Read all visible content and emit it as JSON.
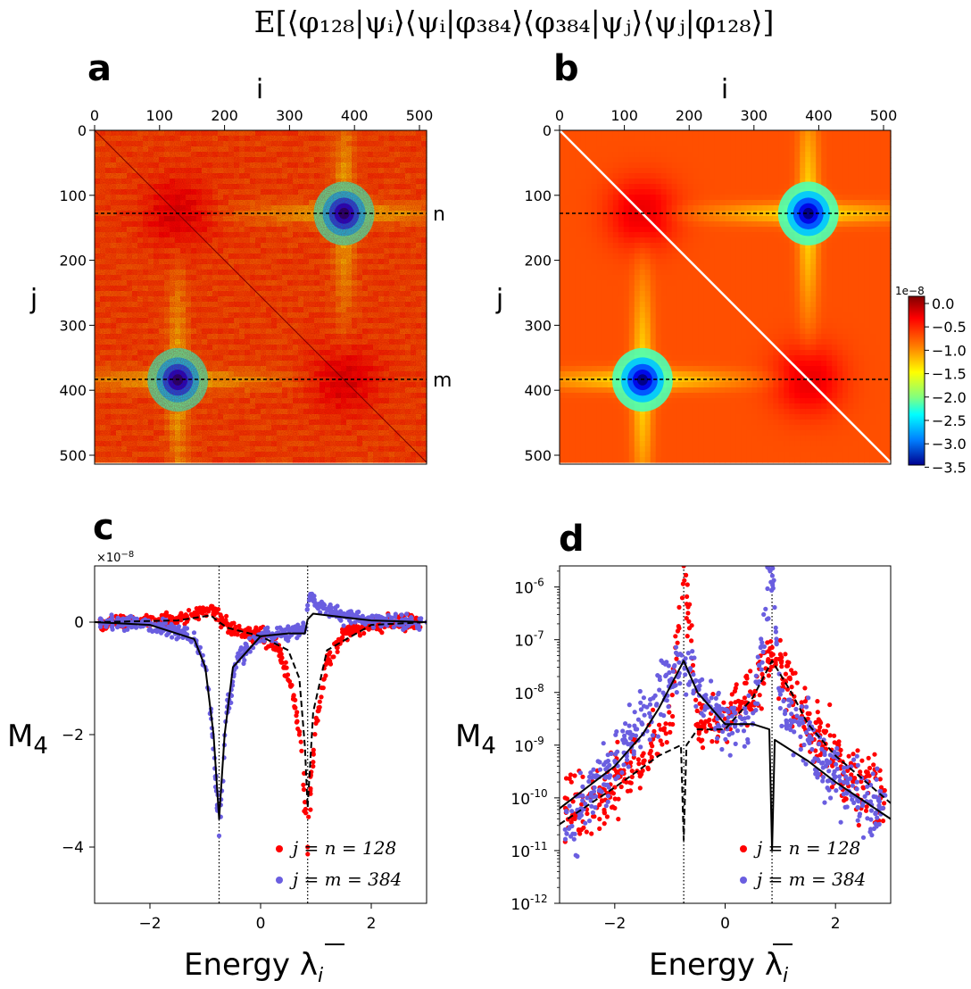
{
  "figure": {
    "title": "E[⟨φ₁₂₈|ψᵢ⟩⟨ψᵢ|φ₃₈₄⟩⟨φ₃₈₄|ψⱼ⟩⟨ψⱼ|φ₁₂₈⟩]"
  },
  "panels": {
    "a": {
      "label": "a",
      "xlabel": "i",
      "ylabel": "j",
      "xticks": [
        "0",
        "100",
        "200",
        "300",
        "400",
        "500"
      ],
      "yticks": [
        "0",
        "100",
        "200",
        "300",
        "400",
        "500"
      ],
      "line_labels": [
        "n",
        "m"
      ]
    },
    "b": {
      "label": "b",
      "xlabel": "i",
      "ylabel": "j",
      "xticks": [
        "0",
        "100",
        "200",
        "300",
        "400",
        "500"
      ],
      "yticks": [
        "0",
        "100",
        "200",
        "300",
        "400",
        "500"
      ]
    },
    "colorbar": {
      "exponent": "1e−8",
      "ticks": [
        "0.0",
        "−0.5",
        "−1.0",
        "−1.5",
        "−2.0",
        "−2.5",
        "−3.0",
        "−3.5"
      ],
      "colormap": "jet"
    },
    "c": {
      "label": "c",
      "ylabel": "M",
      "ylabel_sub": "4",
      "xlabel": "Energy λ",
      "xlabel_sub": "i",
      "offset": "×10",
      "offset_exp": "−8",
      "xticks": [
        "−2",
        "0",
        "2"
      ],
      "yticks": [
        "0",
        "−2",
        "−4"
      ],
      "legend": [
        "j = n  = 128",
        "j = m = 384"
      ]
    },
    "d": {
      "label": "d",
      "ylabel": "M",
      "ylabel_sub": "4",
      "xlabel": "Energy λ",
      "xlabel_sub": "i",
      "xticks": [
        "−2",
        "0",
        "2"
      ],
      "ytick_base": "10",
      "ytick_exps": [
        "-6",
        "-7",
        "-8",
        "-9",
        "-10",
        "-11",
        "-12"
      ],
      "legend": [
        "j = n  = 128",
        "j = m = 384"
      ]
    }
  },
  "chart_data": [
    {
      "panel": "a",
      "type": "heatmap",
      "x_range": [
        0,
        511
      ],
      "y_range": [
        0,
        511
      ],
      "value_range": [
        -3.5e-08,
        2e-09
      ],
      "hotspots": [
        {
          "i": 384,
          "j": 128,
          "value": -3.5e-08
        },
        {
          "i": 128,
          "j": 384,
          "value": -3.5e-08
        }
      ],
      "horizontal_lines": [
        {
          "j": 128,
          "label": "n"
        },
        {
          "j": 384,
          "label": "m"
        }
      ],
      "diagonal": "visible",
      "noise": "sampled"
    },
    {
      "panel": "b",
      "type": "heatmap",
      "x_range": [
        0,
        511
      ],
      "y_range": [
        0,
        511
      ],
      "value_range": [
        -3.5e-08,
        2e-09
      ],
      "hotspots": [
        {
          "i": 384,
          "j": 128,
          "value": -3.5e-08
        },
        {
          "i": 128,
          "j": 384,
          "value": -3.5e-08
        }
      ],
      "horizontal_lines": [
        {
          "j": 128
        },
        {
          "j": 384
        }
      ],
      "diagonal": "white",
      "noise": "none"
    },
    {
      "panel": "c",
      "type": "scatter",
      "xlim": [
        -3,
        3
      ],
      "ylim": [
        -5,
        1
      ],
      "units": "1e-8",
      "vlines": [
        -0.75,
        0.85
      ],
      "series": [
        {
          "name": "j = n  = 128",
          "color": "#ff0000",
          "x": [
            -2.9,
            -2.5,
            -2.0,
            -1.5,
            -1.0,
            -0.9,
            -0.5,
            0.0,
            0.3,
            0.6,
            0.7,
            0.8,
            0.85,
            0.9,
            1.0,
            1.2,
            1.5,
            2.0,
            2.5,
            3.0
          ],
          "y": [
            0.0,
            0.0,
            0.02,
            0.05,
            0.2,
            0.25,
            -0.15,
            -0.25,
            -0.4,
            -1.3,
            -2.0,
            -3.2,
            -4.0,
            -3.0,
            -1.8,
            -0.7,
            -0.2,
            -0.05,
            0.0,
            0.0
          ]
        },
        {
          "name": "j = m = 384",
          "color": "#6a5ee0",
          "x": [
            -2.9,
            -2.5,
            -2.0,
            -1.5,
            -1.2,
            -1.0,
            -0.9,
            -0.8,
            -0.75,
            -0.7,
            -0.6,
            -0.4,
            0.0,
            0.4,
            0.8,
            0.85,
            0.9,
            1.0,
            1.5,
            2.0,
            2.5,
            3.0
          ],
          "y": [
            0.0,
            -0.02,
            -0.05,
            -0.15,
            -0.3,
            -0.8,
            -1.6,
            -3.0,
            -3.8,
            -3.0,
            -1.5,
            -0.6,
            -0.25,
            -0.2,
            -0.1,
            0.3,
            0.5,
            0.3,
            0.1,
            0.05,
            0.0,
            0.0
          ]
        }
      ],
      "theory": [
        {
          "style": "solid",
          "x": [
            -3,
            -2,
            -1.2,
            -1.0,
            -0.85,
            -0.75,
            -0.65,
            -0.5,
            0.0,
            0.5,
            0.8,
            0.85,
            0.95,
            1.2,
            2,
            3
          ],
          "y": [
            0,
            -0.05,
            -0.3,
            -0.8,
            -2.0,
            -3.5,
            -2.0,
            -0.8,
            -0.25,
            -0.2,
            -0.2,
            0.05,
            0.15,
            0.12,
            0.03,
            0
          ]
        },
        {
          "style": "dashed",
          "x": [
            -3,
            -1.5,
            -0.9,
            -0.75,
            -0.6,
            0.0,
            0.5,
            0.7,
            0.8,
            0.85,
            0.95,
            1.2,
            2,
            3
          ],
          "y": [
            0,
            0.03,
            0.12,
            0.0,
            -0.1,
            -0.25,
            -0.5,
            -1.0,
            -2.2,
            -3.3,
            -1.6,
            -0.5,
            -0.05,
            0
          ]
        }
      ]
    },
    {
      "panel": "d",
      "type": "scatter",
      "xlim": [
        -3,
        3
      ],
      "ylim_log10": [
        -12,
        -5.6
      ],
      "vlines": [
        -0.75,
        0.85
      ],
      "series": [
        {
          "name": "j = n  = 128",
          "color": "#ff0000",
          "x": [
            -2.9,
            -2.5,
            -2.0,
            -1.5,
            -1.0,
            -0.75,
            -0.5,
            0.0,
            0.3,
            0.6,
            0.85,
            1.1,
            1.5,
            2.0,
            2.5
          ],
          "y_log10": [
            -10.0,
            -10.3,
            -9.8,
            -9.2,
            -8.6,
            -5.6,
            -8.6,
            -8.5,
            -8.2,
            -7.8,
            -7.4,
            -7.8,
            -8.5,
            -9.2,
            -9.8
          ]
        },
        {
          "name": "j = m = 384",
          "color": "#6a5ee0",
          "x": [
            -2.9,
            -2.5,
            -2.0,
            -1.5,
            -1.0,
            -0.75,
            -0.5,
            0.0,
            0.5,
            0.85,
            1.0,
            1.5,
            2.0,
            2.5
          ],
          "y_log10": [
            -10.6,
            -10.0,
            -9.3,
            -8.6,
            -7.8,
            -7.4,
            -7.9,
            -8.6,
            -8.6,
            -5.5,
            -8.3,
            -8.9,
            -9.6,
            -10.1
          ]
        }
      ],
      "theory": [
        {
          "style": "solid",
          "x": [
            -3,
            -2,
            -1.5,
            -1.2,
            -1.0,
            -0.75,
            -0.5,
            0.0,
            0.5,
            0.8,
            0.85,
            0.9,
            1.5,
            2.0,
            3.0
          ],
          "y_log10": [
            -10.2,
            -9.4,
            -8.8,
            -8.3,
            -7.9,
            -7.4,
            -8.0,
            -8.6,
            -8.6,
            -8.7,
            -11.0,
            -8.9,
            -9.3,
            -9.7,
            -10.4
          ]
        },
        {
          "style": "dashed",
          "x": [
            -3,
            -2,
            -1.2,
            -0.8,
            -0.75,
            -0.7,
            -0.5,
            0.0,
            0.5,
            0.85,
            1.2,
            1.5,
            2.0,
            3.0
          ],
          "y_log10": [
            -10.5,
            -9.8,
            -9.2,
            -9.0,
            -10.8,
            -9.0,
            -8.7,
            -8.7,
            -8.1,
            -7.4,
            -8.0,
            -8.6,
            -9.2,
            -10.1
          ]
        }
      ]
    }
  ]
}
